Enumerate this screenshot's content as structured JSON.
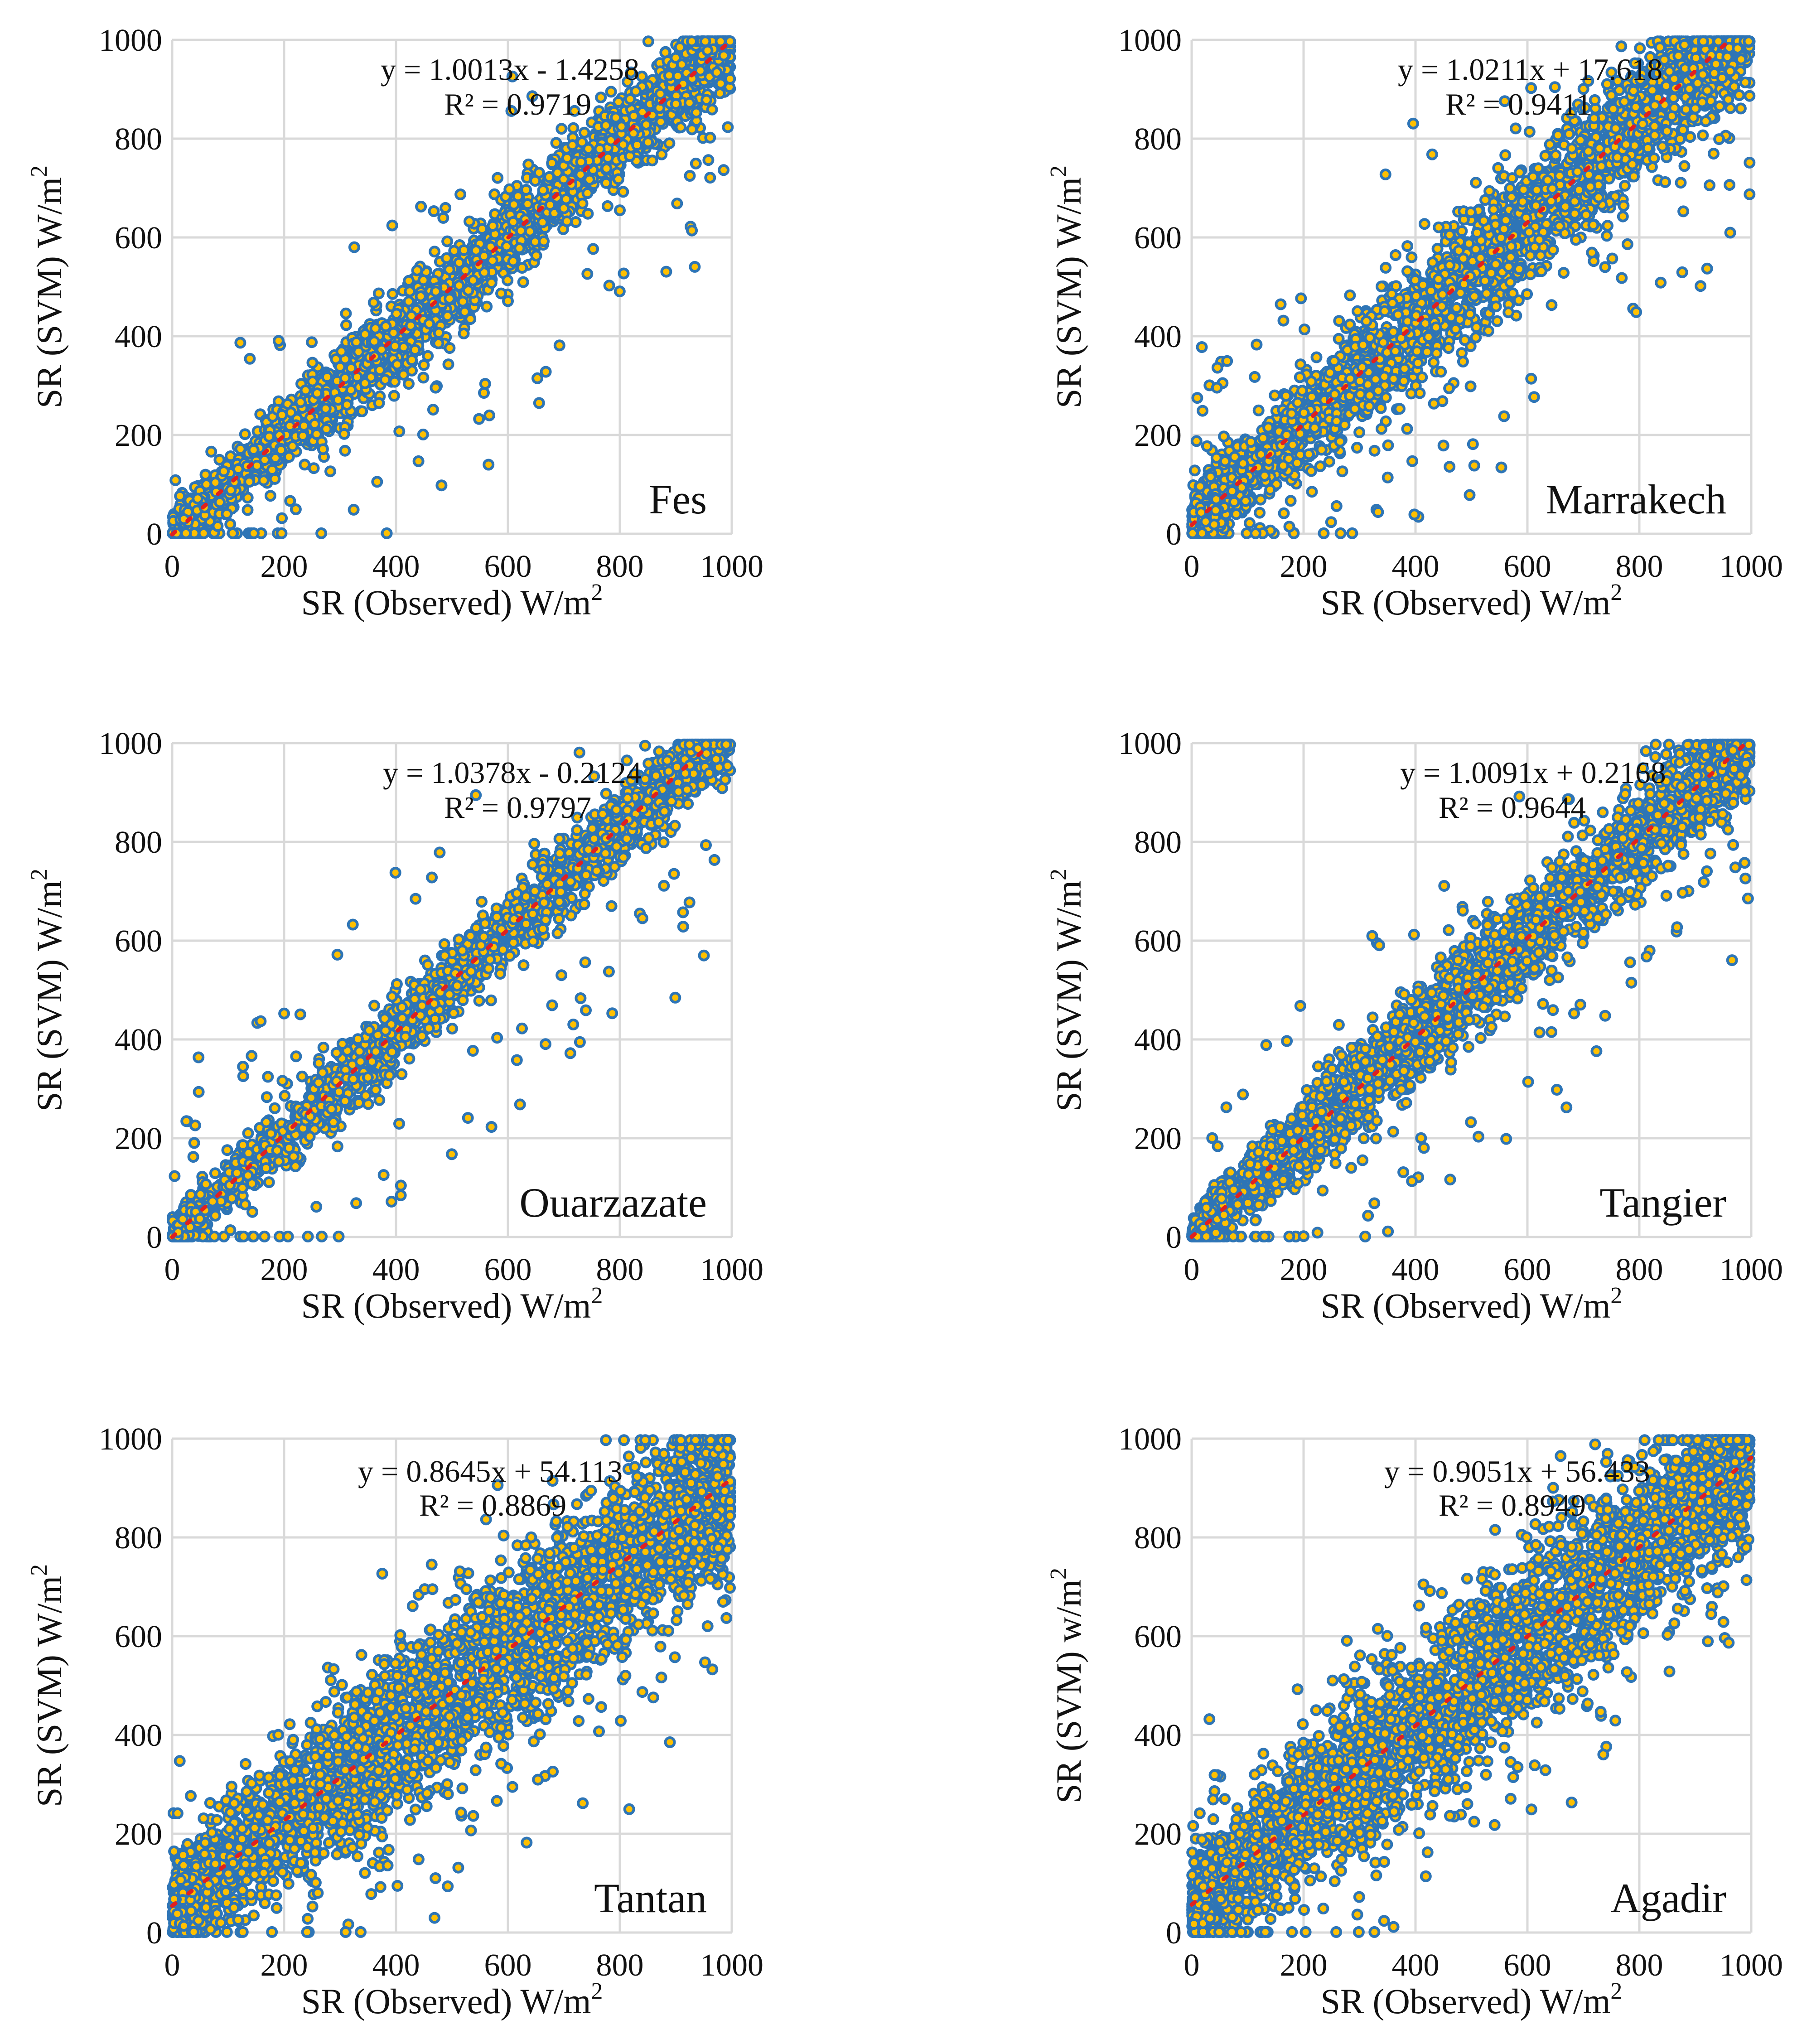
{
  "chart_data": [
    {
      "type": "scatter",
      "panel": "fes",
      "station": "Fes",
      "equation": "y = 1.0013x - 1.4258",
      "r2": "R² = 0.9719",
      "fit": {
        "slope": 1.0013,
        "intercept": -1.4258
      },
      "r2_value": 0.9719,
      "xlabel": "SR (Observed) W/m2",
      "ylabel": "SR (SVM) W/m2",
      "xlim": [
        0,
        1000
      ],
      "ylim": [
        0,
        1000
      ],
      "xticks": [
        "0",
        "200",
        "400",
        "600",
        "800",
        "1000"
      ],
      "yticks": [
        "0",
        "200",
        "400",
        "600",
        "800",
        "1000"
      ],
      "scatter": {
        "n_points": 2600,
        "spread": 45
      },
      "colors": {
        "marker_edge": "#2e75b6",
        "marker_fill": "#ffc000",
        "trendline": "#e02020"
      },
      "grid": true
    },
    {
      "type": "scatter",
      "panel": "marrakech",
      "station": "Marrakech",
      "equation": "y = 1.0211x + 17.618",
      "r2": "R² = 0.9411",
      "fit": {
        "slope": 1.0211,
        "intercept": 17.618
      },
      "r2_value": 0.9411,
      "xlabel": "SR (Observed) W/m2",
      "ylabel": "SR (SVM) W/m2",
      "xlim": [
        0,
        1000
      ],
      "ylim": [
        0,
        1000
      ],
      "xticks": [
        "0",
        "200",
        "400",
        "600",
        "800",
        "1000"
      ],
      "yticks": [
        "0",
        "200",
        "400",
        "600",
        "800",
        "1000"
      ],
      "scatter": {
        "n_points": 3000,
        "spread": 65
      },
      "colors": {
        "marker_edge": "#2e75b6",
        "marker_fill": "#ffc000",
        "trendline": "#e02020"
      },
      "grid": true
    },
    {
      "type": "scatter",
      "panel": "ouarzazate",
      "station": "Ouarzazate",
      "equation": "y = 1.0378x - 0.2124",
      "r2": "R² = 0.9797",
      "fit": {
        "slope": 1.0378,
        "intercept": -0.2124
      },
      "r2_value": 0.9797,
      "xlabel": "SR (Observed) W/m2",
      "ylabel": "SR (SVM) W/m2",
      "xlim": [
        0,
        1000
      ],
      "ylim": [
        0,
        1000
      ],
      "xticks": [
        "0",
        "200",
        "400",
        "600",
        "800",
        "1000"
      ],
      "yticks": [
        "0",
        "200",
        "400",
        "600",
        "800",
        "1000"
      ],
      "scatter": {
        "n_points": 2400,
        "spread": 38
      },
      "colors": {
        "marker_edge": "#2e75b6",
        "marker_fill": "#ffc000",
        "trendline": "#e02020"
      },
      "grid": true
    },
    {
      "type": "scatter",
      "panel": "tangier",
      "station": "Tangier",
      "equation": "y = 1.0091x + 0.2168",
      "r2": "R² = 0.9644",
      "fit": {
        "slope": 1.0091,
        "intercept": 0.2168
      },
      "r2_value": 0.9644,
      "xlabel": "SR (Observed) W/m2",
      "ylabel": "SR (SVM) W/m2",
      "xlim": [
        0,
        1000
      ],
      "ylim": [
        0,
        1000
      ],
      "xticks": [
        "0",
        "200",
        "400",
        "600",
        "800",
        "1000"
      ],
      "yticks": [
        "0",
        "200",
        "400",
        "600",
        "800",
        "1000"
      ],
      "scatter": {
        "n_points": 2800,
        "spread": 50
      },
      "colors": {
        "marker_edge": "#2e75b6",
        "marker_fill": "#ffc000",
        "trendline": "#e02020"
      },
      "grid": true
    },
    {
      "type": "scatter",
      "panel": "tantan",
      "station": "Tantan",
      "equation": "y = 0.8645x + 54.113",
      "r2": "R² = 0.8869",
      "fit": {
        "slope": 0.8645,
        "intercept": 54.113
      },
      "r2_value": 0.8869,
      "xlabel": "SR (Observed) W/m2",
      "ylabel": "SR (SVM) W/m2",
      "xlim": [
        0,
        1000
      ],
      "ylim": [
        0,
        1000
      ],
      "xticks": [
        "0",
        "200",
        "400",
        "600",
        "800",
        "1000"
      ],
      "yticks": [
        "0",
        "200",
        "400",
        "600",
        "800",
        "1000"
      ],
      "scatter": {
        "n_points": 3600,
        "spread": 85
      },
      "colors": {
        "marker_edge": "#2e75b6",
        "marker_fill": "#ffc000",
        "trendline": "#e02020"
      },
      "grid": true
    },
    {
      "type": "scatter",
      "panel": "agadir",
      "station": "Agadir",
      "equation": "y = 0.9051x + 56.433",
      "r2": "R² = 0.8949",
      "fit": {
        "slope": 0.9051,
        "intercept": 56.433
      },
      "r2_value": 0.8949,
      "xlabel": "SR (Observed) W/m2",
      "ylabel": "SR (SVM) w/m2",
      "xlim": [
        0,
        1000
      ],
      "ylim": [
        0,
        1000
      ],
      "xticks": [
        "0",
        "200",
        "400",
        "600",
        "800",
        "1000"
      ],
      "yticks": [
        "0",
        "200",
        "400",
        "600",
        "800",
        "1000"
      ],
      "scatter": {
        "n_points": 3600,
        "spread": 85
      },
      "colors": {
        "marker_edge": "#2e75b6",
        "marker_fill": "#ffc000",
        "trendline": "#e02020"
      },
      "grid": true
    }
  ]
}
